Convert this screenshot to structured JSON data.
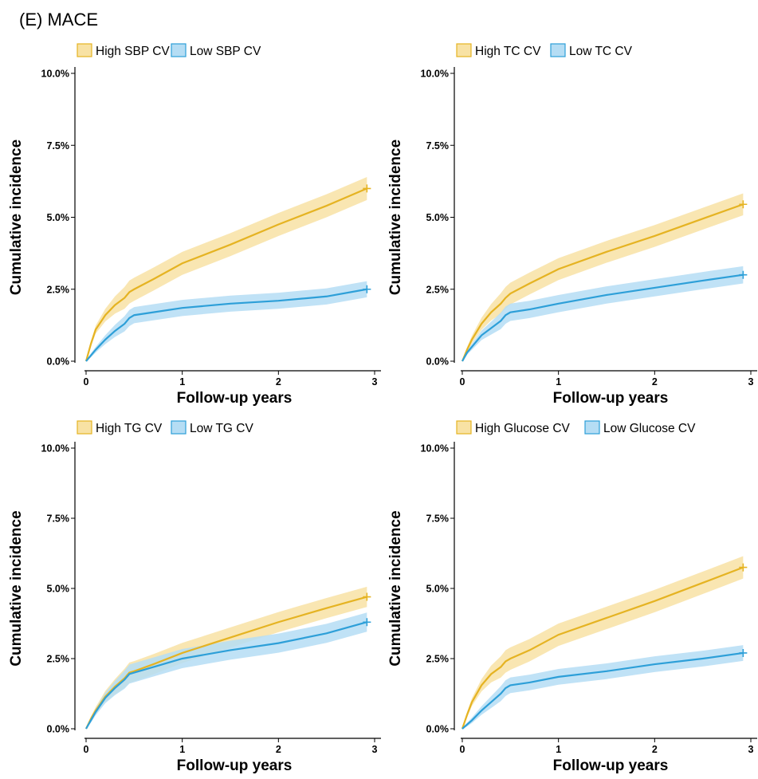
{
  "figure_title": "(E) MACE",
  "colors": {
    "high_line": "#E5B322",
    "high_band": "#F8E2A4",
    "low_line": "#2D9FD8",
    "low_band": "#B5DDF4"
  },
  "chart_data": [
    {
      "type": "line",
      "xlabel": "Follow-up years",
      "ylabel": "Cumulative incidence",
      "xlim": [
        0,
        3
      ],
      "ylim": [
        0,
        10
      ],
      "x_ticks": [
        "0",
        "1",
        "2",
        "3"
      ],
      "y_ticks": [
        "0.0%",
        "2.5%",
        "5.0%",
        "7.5%",
        "10.0%"
      ],
      "legend_position": "top-left",
      "grid": false,
      "series": [
        {
          "name": "High SBP CV",
          "x": [
            0,
            0.05,
            0.1,
            0.2,
            0.3,
            0.4,
            0.45,
            0.5,
            0.7,
            1.0,
            1.5,
            2.0,
            2.5,
            2.92
          ],
          "y": [
            0,
            0.6,
            1.1,
            1.6,
            1.95,
            2.2,
            2.4,
            2.5,
            2.85,
            3.4,
            4.05,
            4.75,
            5.4,
            6.0
          ],
          "band": 0.4
        },
        {
          "name": "Low SBP CV",
          "x": [
            0,
            0.05,
            0.1,
            0.2,
            0.3,
            0.4,
            0.45,
            0.5,
            0.7,
            1.0,
            1.5,
            2.0,
            2.5,
            2.92
          ],
          "y": [
            0,
            0.2,
            0.4,
            0.75,
            1.05,
            1.3,
            1.5,
            1.6,
            1.7,
            1.85,
            2.0,
            2.1,
            2.25,
            2.5
          ],
          "band": 0.28
        }
      ]
    },
    {
      "type": "line",
      "xlabel": "Follow-up years",
      "ylabel": "Cumulative incidence",
      "xlim": [
        0,
        3
      ],
      "ylim": [
        0,
        10
      ],
      "x_ticks": [
        "0",
        "1",
        "2",
        "3"
      ],
      "y_ticks": [
        "0.0%",
        "2.5%",
        "5.0%",
        "7.5%",
        "10.0%"
      ],
      "legend_position": "top-left",
      "grid": false,
      "series": [
        {
          "name": "High TC CV",
          "x": [
            0,
            0.05,
            0.1,
            0.2,
            0.3,
            0.4,
            0.45,
            0.5,
            0.7,
            1.0,
            1.5,
            2.0,
            2.5,
            2.92
          ],
          "y": [
            0,
            0.4,
            0.75,
            1.3,
            1.7,
            2.0,
            2.2,
            2.35,
            2.7,
            3.2,
            3.8,
            4.35,
            4.95,
            5.45
          ],
          "band": 0.38
        },
        {
          "name": "Low TC CV",
          "x": [
            0,
            0.05,
            0.1,
            0.2,
            0.3,
            0.4,
            0.45,
            0.5,
            0.7,
            1.0,
            1.5,
            2.0,
            2.5,
            2.92
          ],
          "y": [
            0,
            0.3,
            0.5,
            0.9,
            1.15,
            1.4,
            1.6,
            1.7,
            1.8,
            2.0,
            2.3,
            2.55,
            2.8,
            3.0
          ],
          "band": 0.3
        }
      ]
    },
    {
      "type": "line",
      "xlabel": "Follow-up years",
      "ylabel": "Cumulative incidence",
      "xlim": [
        0,
        3
      ],
      "ylim": [
        0,
        10
      ],
      "x_ticks": [
        "0",
        "1",
        "2",
        "3"
      ],
      "y_ticks": [
        "0.0%",
        "2.5%",
        "5.0%",
        "7.5%",
        "10.0%"
      ],
      "legend_position": "top-left",
      "grid": false,
      "series": [
        {
          "name": "High TG CV",
          "x": [
            0,
            0.05,
            0.1,
            0.2,
            0.3,
            0.4,
            0.45,
            0.5,
            0.7,
            1.0,
            1.5,
            2.0,
            2.5,
            2.92
          ],
          "y": [
            0,
            0.35,
            0.65,
            1.15,
            1.5,
            1.8,
            2.0,
            2.05,
            2.3,
            2.7,
            3.25,
            3.8,
            4.3,
            4.7
          ],
          "band": 0.36
        },
        {
          "name": "Low TG CV",
          "x": [
            0,
            0.05,
            0.1,
            0.2,
            0.3,
            0.4,
            0.45,
            0.5,
            0.7,
            1.0,
            1.5,
            2.0,
            2.5,
            2.92
          ],
          "y": [
            0,
            0.3,
            0.6,
            1.1,
            1.45,
            1.75,
            1.95,
            2.0,
            2.2,
            2.5,
            2.8,
            3.05,
            3.4,
            3.8
          ],
          "band": 0.34
        }
      ]
    },
    {
      "type": "line",
      "xlabel": "Follow-up years",
      "ylabel": "Cumulative incidence",
      "xlim": [
        0,
        3
      ],
      "ylim": [
        0,
        10
      ],
      "x_ticks": [
        "0",
        "1",
        "2",
        "3"
      ],
      "y_ticks": [
        "0.0%",
        "2.5%",
        "5.0%",
        "7.5%",
        "10.0%"
      ],
      "legend_position": "top-left",
      "grid": false,
      "series": [
        {
          "name": "High Glucose CV",
          "x": [
            0,
            0.05,
            0.1,
            0.2,
            0.3,
            0.4,
            0.45,
            0.5,
            0.7,
            1.0,
            1.5,
            2.0,
            2.5,
            2.92
          ],
          "y": [
            0,
            0.5,
            0.95,
            1.55,
            1.95,
            2.2,
            2.4,
            2.5,
            2.8,
            3.35,
            3.95,
            4.55,
            5.2,
            5.75
          ],
          "band": 0.4
        },
        {
          "name": "Low Glucose CV",
          "x": [
            0,
            0.05,
            0.1,
            0.2,
            0.3,
            0.4,
            0.45,
            0.5,
            0.7,
            1.0,
            1.5,
            2.0,
            2.5,
            2.92
          ],
          "y": [
            0,
            0.15,
            0.3,
            0.65,
            0.95,
            1.25,
            1.45,
            1.55,
            1.65,
            1.85,
            2.05,
            2.3,
            2.5,
            2.7
          ],
          "band": 0.28
        }
      ]
    }
  ]
}
